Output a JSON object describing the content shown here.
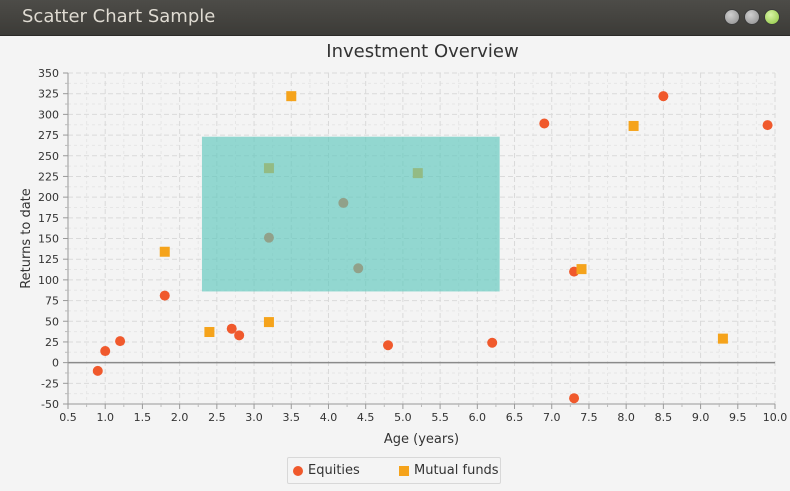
{
  "window": {
    "title": "Scatter Chart Sample"
  },
  "chart_data": {
    "type": "scatter",
    "title": "Investment Overview",
    "xlabel": "Age (years)",
    "ylabel": "Returns to date",
    "xlim": [
      0.5,
      10.0
    ],
    "ylim": [
      -50,
      350
    ],
    "x_ticks": [
      0.5,
      1.0,
      1.5,
      2.0,
      2.5,
      3.0,
      3.5,
      4.0,
      4.5,
      5.0,
      5.5,
      6.0,
      6.5,
      7.0,
      7.5,
      8.0,
      8.5,
      9.0,
      9.5,
      10.0
    ],
    "x_tick_labels": [
      "0.5",
      "1.0",
      "1.5",
      "2.0",
      "2.5",
      "3.0",
      "3.5",
      "4.0",
      "4.5",
      "5.0",
      "5.5",
      "6.0",
      "6.5",
      "7.0",
      "7.5",
      "8.0",
      "8.5",
      "9.0",
      "9.5",
      "10.0"
    ],
    "y_ticks": [
      -50,
      -25,
      0,
      25,
      50,
      75,
      100,
      125,
      150,
      175,
      200,
      225,
      250,
      275,
      300,
      325,
      350
    ],
    "y_tick_labels": [
      "-50",
      "-25",
      "0",
      "25",
      "50",
      "75",
      "100",
      "125",
      "150",
      "175",
      "200",
      "225",
      "250",
      "275",
      "300",
      "325",
      "350"
    ],
    "grid": true,
    "legend_position": "bottom",
    "highlight_region": {
      "x": [
        2.3,
        6.3
      ],
      "y": [
        86,
        273
      ],
      "color": "#5ec8bd"
    },
    "series": [
      {
        "name": "Equities",
        "marker": "circle",
        "color": "#f0592c",
        "points": [
          [
            0.9,
            -10
          ],
          [
            1.0,
            14
          ],
          [
            1.2,
            26
          ],
          [
            1.8,
            81
          ],
          [
            2.7,
            41
          ],
          [
            2.8,
            33
          ],
          [
            3.2,
            151
          ],
          [
            4.2,
            193
          ],
          [
            4.4,
            114
          ],
          [
            4.8,
            21
          ],
          [
            6.2,
            24
          ],
          [
            6.9,
            289
          ],
          [
            7.3,
            110
          ],
          [
            7.3,
            -43
          ],
          [
            8.5,
            322
          ],
          [
            9.9,
            287
          ]
        ]
      },
      {
        "name": "Mutual funds",
        "marker": "square",
        "color": "#f5a31b",
        "points": [
          [
            1.8,
            134
          ],
          [
            2.4,
            37
          ],
          [
            3.2,
            49
          ],
          [
            3.2,
            235
          ],
          [
            3.5,
            322
          ],
          [
            5.2,
            229
          ],
          [
            7.4,
            113
          ],
          [
            8.1,
            286
          ],
          [
            9.3,
            29
          ]
        ]
      }
    ]
  }
}
